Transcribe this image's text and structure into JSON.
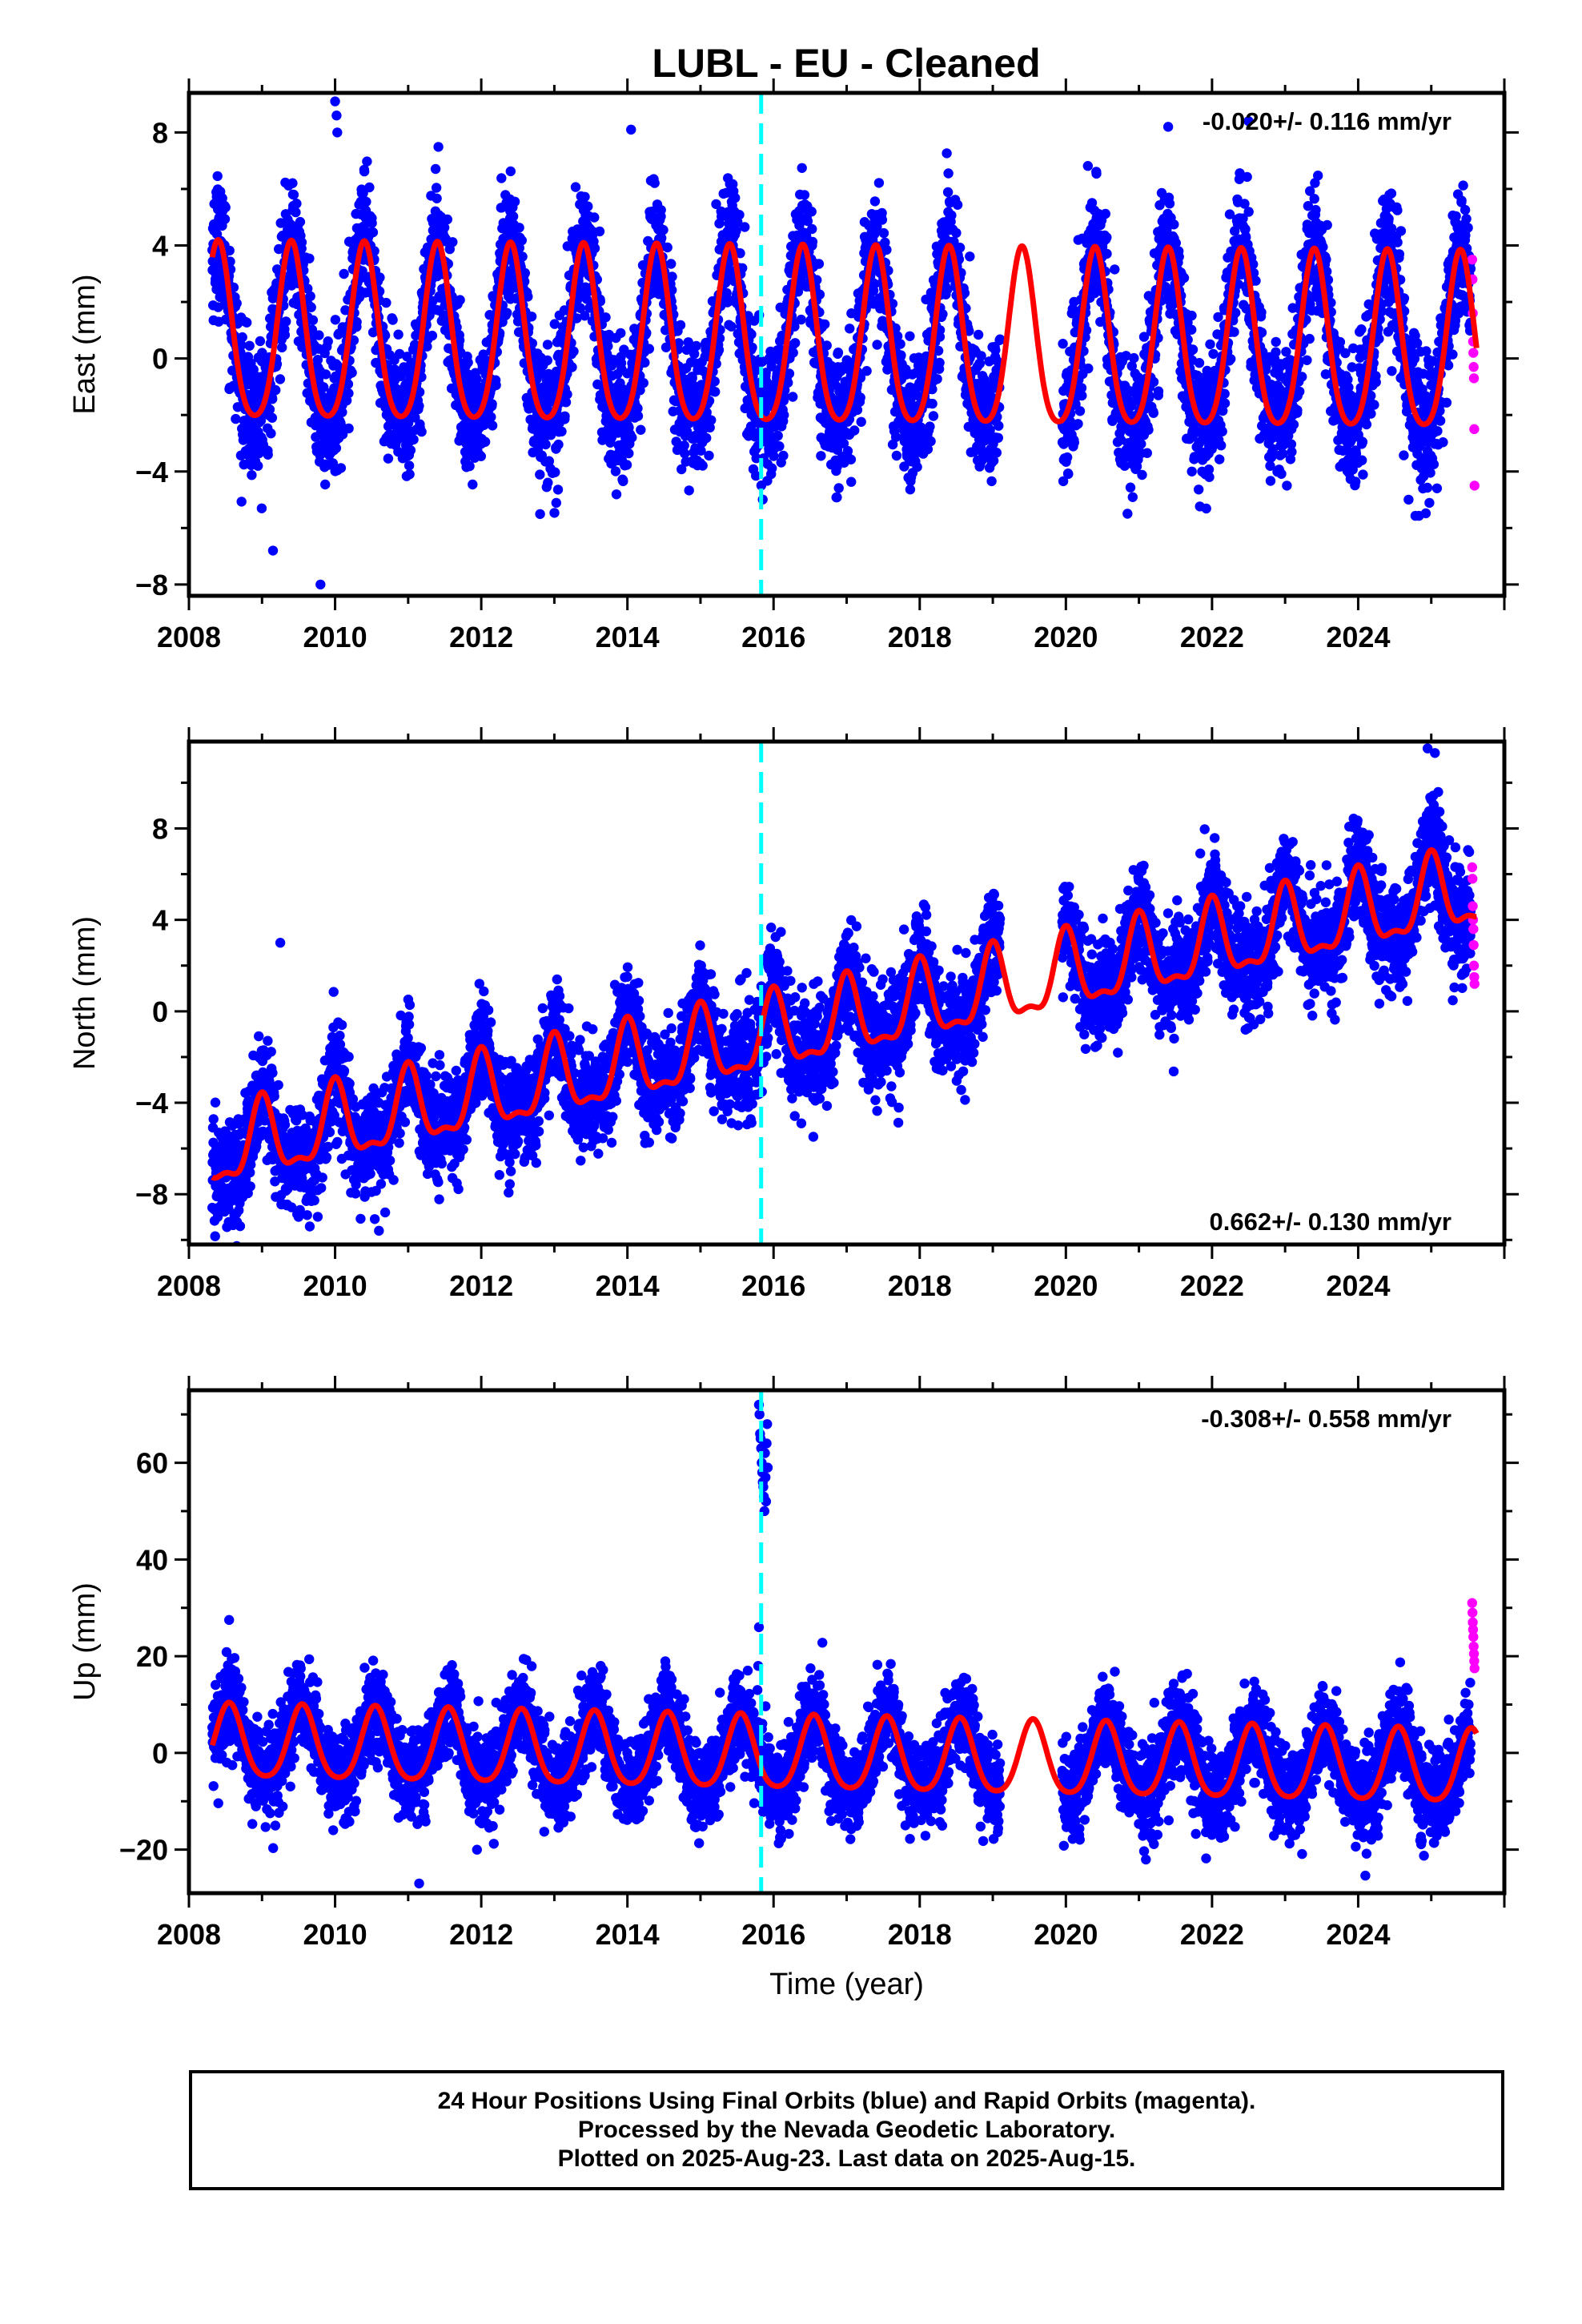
{
  "title": "LUBL  - EU - Cleaned",
  "footer": {
    "line1": "24 Hour Positions Using Final Orbits (blue) and Rapid Orbits (magenta).",
    "line2": "Processed by the Nevada Geodetic Laboratory.",
    "line3": "Plotted on 2025-Aug-23. Last data on 2025-Aug-15."
  },
  "colors": {
    "final_orbits": "#0000ff",
    "rapid_orbits": "#ff00ff",
    "model": "#ff0000",
    "event": "#00ffff"
  },
  "chart_data": [
    {
      "type": "scatter",
      "name": "east",
      "ylabel": "East (mm)",
      "xlabel": "",
      "trend": "-0.020+/- 0.116 mm/yr",
      "xlim": [
        2008.0,
        2026.0
      ],
      "ylim": [
        -8.4,
        9.4
      ],
      "yticks": [
        -8,
        -4,
        0,
        4,
        8
      ],
      "xticks": [
        2008,
        2010,
        2012,
        2014,
        2016,
        2018,
        2020,
        2022,
        2024
      ],
      "event_x": 2015.83,
      "model": {
        "offset": 0.6,
        "slope": -0.02,
        "annual_amp": 3.1,
        "annual_phase_year": 0.4,
        "semiannual_amp": 0.5
      },
      "noise_sd": 1.15,
      "outliers": [
        [
          2009.15,
          -6.8
        ],
        [
          2009.8,
          -8.0
        ],
        [
          2010.0,
          9.1
        ],
        [
          2010.02,
          8.6
        ],
        [
          2010.03,
          8.0
        ],
        [
          2014.05,
          8.1
        ],
        [
          2021.4,
          8.2
        ],
        [
          2022.5,
          8.4
        ]
      ],
      "rapid_values": [
        3.5,
        2.8,
        1.6,
        0.6,
        0.2,
        -0.3,
        -0.7,
        -2.5,
        -4.5
      ]
    },
    {
      "type": "scatter",
      "name": "north",
      "ylabel": "North (mm)",
      "xlabel": "",
      "trend": "0.662+/- 0.130 mm/yr",
      "xlim": [
        2008.0,
        2026.0
      ],
      "ylim": [
        -10.2,
        11.8
      ],
      "yticks": [
        -8,
        -4,
        0,
        4,
        8
      ],
      "xticks": [
        2008,
        2010,
        2012,
        2014,
        2016,
        2018,
        2020,
        2022,
        2024
      ],
      "event_x": 2015.83,
      "model": {
        "offset": -6.2,
        "slope": 0.662,
        "annual_amp": 1.6,
        "annual_phase_year": 0.0,
        "semiannual_amp": 0.6
      },
      "noise_sd": 1.15,
      "outliers": [
        [
          2008.7,
          -9.4
        ],
        [
          2009.25,
          3.0
        ],
        [
          2010.6,
          -9.6
        ],
        [
          2024.95,
          11.5
        ],
        [
          2025.05,
          11.3
        ]
      ],
      "rapid_values": [
        6.3,
        5.8,
        4.6,
        4.0,
        3.6,
        2.9,
        2.0,
        1.5,
        1.2
      ]
    },
    {
      "type": "scatter",
      "name": "up",
      "ylabel": "Up (mm)",
      "xlabel": "Time (year)",
      "trend": "-0.308+/- 0.558 mm/yr",
      "xlim": [
        2008.0,
        2026.0
      ],
      "ylim": [
        -29.0,
        75.0
      ],
      "yticks": [
        -20,
        0,
        20,
        40,
        60
      ],
      "xticks": [
        2008,
        2010,
        2012,
        2014,
        2016,
        2018,
        2020,
        2022,
        2024
      ],
      "event_x": 2015.83,
      "model": {
        "offset": 1.8,
        "slope": -0.308,
        "annual_amp": 7.5,
        "annual_phase_year": 0.55,
        "semiannual_amp": 1.2
      },
      "noise_sd": 4.6,
      "outliers": [
        [
          2008.55,
          27.5
        ],
        [
          2011.15,
          -27.0
        ],
        [
          2015.8,
          26.0
        ],
        [
          2015.78,
          13.0
        ],
        [
          2015.79,
          18.0
        ]
      ],
      "spike": {
        "x_start": 2015.8,
        "x_end": 2015.92,
        "values": [
          72,
          70,
          66,
          65,
          63,
          60,
          58,
          56,
          55,
          53,
          50,
          62,
          57,
          52,
          64,
          68,
          59
        ]
      },
      "rapid_values": [
        31.0,
        29.0,
        27.0,
        25.5,
        24.0,
        22.0,
        20.5,
        19.0,
        17.5
      ]
    }
  ]
}
